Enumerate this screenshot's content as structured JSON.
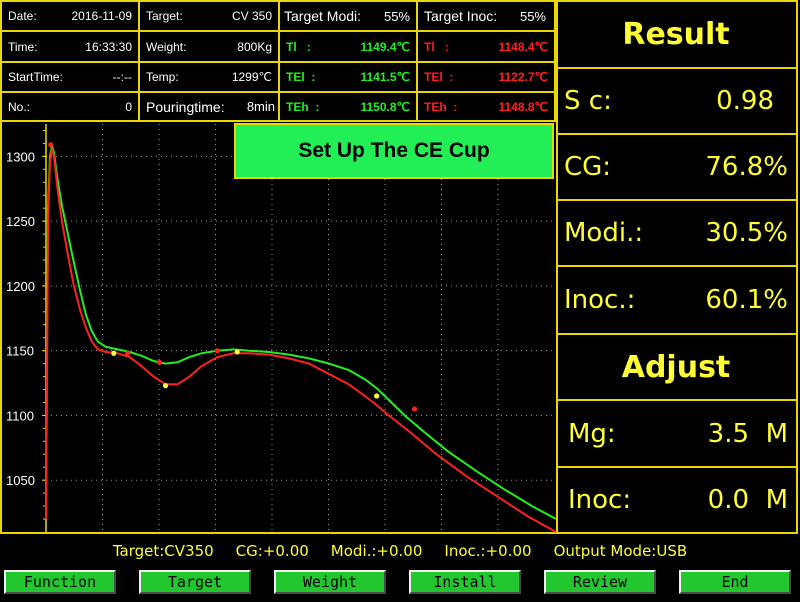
{
  "info": {
    "date_label": "Date:",
    "date_value": "2016-11-09",
    "time_label": "Time:",
    "time_value": "16:33:30",
    "starttime_label": "StartTime:",
    "starttime_value": "--:--",
    "no_label": "No.:",
    "no_value": "0",
    "target_label": "Target:",
    "target_value": "CV 350",
    "weight_label": "Weight:",
    "weight_value": "800Kg",
    "temp_label": "Temp:",
    "temp_value": "1299℃",
    "pouring_label": "Pouringtime:",
    "pouring_value": "8min"
  },
  "modi": {
    "header_label": "Target Modi:",
    "header_value": "55%",
    "tl_label": "Tl",
    "tl_value": "1149.4℃",
    "tel_label": "TEl",
    "tel_value": "1141.5℃",
    "teh_label": "TEh",
    "teh_value": "1150.8℃",
    "sep": ":"
  },
  "inoc": {
    "header_label": "Target Inoc:",
    "header_value": "55%",
    "tl_label": "Tl",
    "tl_value": "1148.4℃",
    "tel_label": "TEl",
    "tel_value": "1122.7℃",
    "teh_label": "TEh",
    "teh_value": "1148.8℃",
    "sep": ":"
  },
  "banner": "Set Up The CE Cup",
  "result": {
    "title": "Result",
    "sc_label": "S c:",
    "sc_value": "0.98",
    "cg_label": "CG:",
    "cg_value": "76.8%",
    "modi_label": "Modi.:",
    "modi_value": "30.5%",
    "inoc_label": "Inoc.:",
    "inoc_value": "60.1%"
  },
  "adjust": {
    "title": "Adjust",
    "mg_label": "Mg:",
    "mg_value": "3.5",
    "mg_unit": "M",
    "inoc_label": "Inoc:",
    "inoc_value": "0.0",
    "inoc_unit": "M"
  },
  "status": {
    "target": "Target:CV350",
    "cg": "CG:+0.00",
    "modi": "Modi.:+0.00",
    "inoc": "Inoc.:+0.00",
    "output": "Output Mode:USB"
  },
  "buttons": [
    "Function",
    "Target",
    "Weight",
    "Install",
    "Review",
    "End"
  ],
  "colors": {
    "frame": "#e8d800",
    "banner": "#22ee55",
    "button": "#22c730",
    "green_curve": "#22ee22",
    "red_curve": "#ff2020",
    "text_yellow": "#ffff33"
  },
  "chart_data": {
    "type": "line",
    "ylim": [
      1010,
      1325
    ],
    "y_ticks": [
      "1050",
      "1100",
      "1150",
      "1200",
      "1250",
      "1300"
    ],
    "grid": true,
    "series": [
      {
        "color": "#22ee22",
        "points": [
          [
            0.0,
            1020
          ],
          [
            1.0,
            1260
          ],
          [
            2.0,
            1300
          ],
          [
            3.0,
            1308
          ],
          [
            4.0,
            1303
          ],
          [
            5.5,
            1285
          ],
          [
            8,
            1262
          ],
          [
            11,
            1240
          ],
          [
            14,
            1218
          ],
          [
            17,
            1197
          ],
          [
            20,
            1178
          ],
          [
            23,
            1165
          ],
          [
            26,
            1157
          ],
          [
            30,
            1153
          ],
          [
            36,
            1151
          ],
          [
            42,
            1149
          ],
          [
            48,
            1146
          ],
          [
            54,
            1142
          ],
          [
            60,
            1140
          ],
          [
            66,
            1141
          ],
          [
            72,
            1145
          ],
          [
            78,
            1148
          ],
          [
            86,
            1150
          ],
          [
            94,
            1151
          ],
          [
            102,
            1150
          ],
          [
            112,
            1149
          ],
          [
            122,
            1147
          ],
          [
            132,
            1144
          ],
          [
            142,
            1140
          ],
          [
            152,
            1135
          ],
          [
            160,
            1128
          ],
          [
            166,
            1121
          ],
          [
            172,
            1112
          ],
          [
            180,
            1100
          ],
          [
            190,
            1087
          ],
          [
            202,
            1072
          ],
          [
            216,
            1057
          ],
          [
            230,
            1043
          ],
          [
            244,
            1030
          ],
          [
            256,
            1020
          ]
        ]
      },
      {
        "color": "#ff2020",
        "points": [
          [
            0.0,
            1020
          ],
          [
            1.0,
            1250
          ],
          [
            2.0,
            1295
          ],
          [
            3.0,
            1306
          ],
          [
            4.0,
            1300
          ],
          [
            5.5,
            1278
          ],
          [
            8,
            1250
          ],
          [
            11,
            1224
          ],
          [
            14,
            1200
          ],
          [
            17,
            1182
          ],
          [
            20,
            1168
          ],
          [
            23,
            1157
          ],
          [
            26,
            1151
          ],
          [
            30,
            1149
          ],
          [
            36,
            1148
          ],
          [
            42,
            1145
          ],
          [
            48,
            1138
          ],
          [
            54,
            1130
          ],
          [
            60,
            1124
          ],
          [
            66,
            1124
          ],
          [
            72,
            1130
          ],
          [
            78,
            1138
          ],
          [
            86,
            1145
          ],
          [
            94,
            1148
          ],
          [
            102,
            1148
          ],
          [
            112,
            1147
          ],
          [
            122,
            1144
          ],
          [
            132,
            1140
          ],
          [
            142,
            1132
          ],
          [
            152,
            1124
          ],
          [
            160,
            1115
          ],
          [
            166,
            1108
          ],
          [
            172,
            1100
          ],
          [
            182,
            1088
          ],
          [
            196,
            1070
          ],
          [
            212,
            1052
          ],
          [
            228,
            1036
          ],
          [
            242,
            1022
          ],
          [
            256,
            1010
          ]
        ]
      }
    ],
    "markers": [
      {
        "x": 2.4,
        "y": 1309,
        "color": "#ff2020"
      },
      {
        "x": 34,
        "y": 1148,
        "color": "#ffff33"
      },
      {
        "x": 41,
        "y": 1148,
        "color": "#ff2020"
      },
      {
        "x": 57,
        "y": 1141,
        "color": "#ff2020"
      },
      {
        "x": 60,
        "y": 1123,
        "color": "#ffff33"
      },
      {
        "x": 86,
        "y": 1150,
        "color": "#ff2020"
      },
      {
        "x": 96,
        "y": 1149,
        "color": "#ffff33"
      },
      {
        "x": 166,
        "y": 1115,
        "color": "#ffff33"
      },
      {
        "x": 185,
        "y": 1105,
        "color": "#ff2020"
      }
    ]
  }
}
